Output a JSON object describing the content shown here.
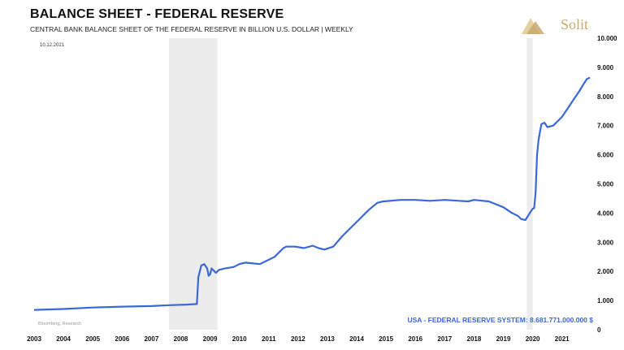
{
  "header": {
    "title": "BALANCE SHEET - FEDERAL RESERVE",
    "subtitle": "CENTRAL BANK BALANCE SHEET OF THE FEDERAL RESERVE IN BILLION U.S. DOLLAR | WEEKLY",
    "date": "10.12.2021",
    "source": "Bloomberg, Research",
    "brand": "Solit"
  },
  "annotation": "USA - FEDERAL RESERVE SYSTEM: 8.681.771.000.000 $",
  "colors": {
    "line": "#3a68d8",
    "shade": "#ececec",
    "brand": "#c9a96e"
  },
  "chart_data": {
    "type": "line",
    "title": "BALANCE SHEET - FEDERAL RESERVE",
    "ylabel": "",
    "xlabel": "",
    "ylim": [
      0,
      10000
    ],
    "xlim": [
      2003,
      2021.95
    ],
    "yaxis_side": "right",
    "grid": false,
    "y_ticks": [
      0,
      1000,
      2000,
      3000,
      4000,
      5000,
      6000,
      7000,
      8000,
      9000,
      10000
    ],
    "y_tick_labels": [
      "0",
      "1.000",
      "2.000",
      "3.000",
      "4.000",
      "5.000",
      "6.000",
      "7.000",
      "8.000",
      "9.000",
      "10.000"
    ],
    "x_tick_labels": [
      "2003",
      "2004",
      "2005",
      "2006",
      "2007",
      "2008",
      "2009",
      "2010",
      "2011",
      "2012",
      "2013",
      "2014",
      "2015",
      "2016",
      "2017",
      "2018",
      "2019",
      "2020",
      "2021"
    ],
    "shaded_periods": [
      [
        2007.6,
        2009.25
      ],
      [
        2019.8,
        2020.0
      ]
    ],
    "series": [
      {
        "x": [
          2003.0,
          2004.0,
          2005.0,
          2006.0,
          2007.0,
          2007.6,
          2008.2,
          2008.55,
          2008.6,
          2008.7,
          2008.8,
          2008.9,
          2008.95,
          2009.0,
          2009.05,
          2009.15,
          2009.2,
          2009.3,
          2009.5,
          2009.8,
          2010.0,
          2010.2,
          2010.4,
          2010.7,
          2010.9,
          2011.2,
          2011.5,
          2011.6,
          2011.9,
          2012.2,
          2012.5,
          2012.7,
          2012.9,
          2013.2,
          2013.5,
          2013.8,
          2014.1,
          2014.4,
          2014.7,
          2014.9,
          2015.5,
          2016.0,
          2016.5,
          2017.0,
          2017.5,
          2017.8,
          2018.0,
          2018.5,
          2019.0,
          2019.3,
          2019.5,
          2019.6,
          2019.75,
          2019.9,
          2020.0,
          2020.05,
          2020.1,
          2020.15,
          2020.2,
          2020.25,
          2020.3,
          2020.4,
          2020.5,
          2020.7,
          2020.9,
          2021.0,
          2021.2,
          2021.4,
          2021.6,
          2021.75,
          2021.85,
          2021.95
        ],
        "y": [
          680,
          710,
          760,
          790,
          810,
          840,
          860,
          880,
          1800,
          2200,
          2250,
          2100,
          1850,
          1900,
          2100,
          2000,
          1950,
          2050,
          2100,
          2150,
          2250,
          2300,
          2280,
          2250,
          2350,
          2500,
          2800,
          2850,
          2850,
          2800,
          2880,
          2800,
          2750,
          2850,
          3200,
          3500,
          3800,
          4100,
          4350,
          4400,
          4450,
          4450,
          4420,
          4450,
          4420,
          4400,
          4450,
          4400,
          4200,
          4000,
          3900,
          3800,
          3760,
          4000,
          4150,
          4170,
          4700,
          6000,
          6500,
          6800,
          7050,
          7100,
          6950,
          7000,
          7200,
          7300,
          7600,
          7900,
          8200,
          8450,
          8600,
          8650
        ]
      }
    ]
  }
}
